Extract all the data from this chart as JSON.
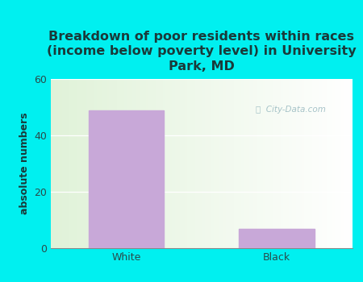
{
  "title": "Breakdown of poor residents within races\n(income below poverty level) in University\nPark, MD",
  "categories": [
    "White",
    "Black"
  ],
  "values": [
    49,
    7
  ],
  "bar_color": "#c8a8d8",
  "ylabel": "absolute numbers",
  "ylim": [
    0,
    60
  ],
  "yticks": [
    0,
    20,
    40,
    60
  ],
  "bg_color": "#00f0f0",
  "title_color": "#1a3a3a",
  "ylabel_color": "#1a3a3a",
  "tick_color": "#2a4a4a",
  "watermark_text": "City-Data.com",
  "title_fontsize": 11.5,
  "ylabel_fontsize": 9,
  "tick_fontsize": 9
}
